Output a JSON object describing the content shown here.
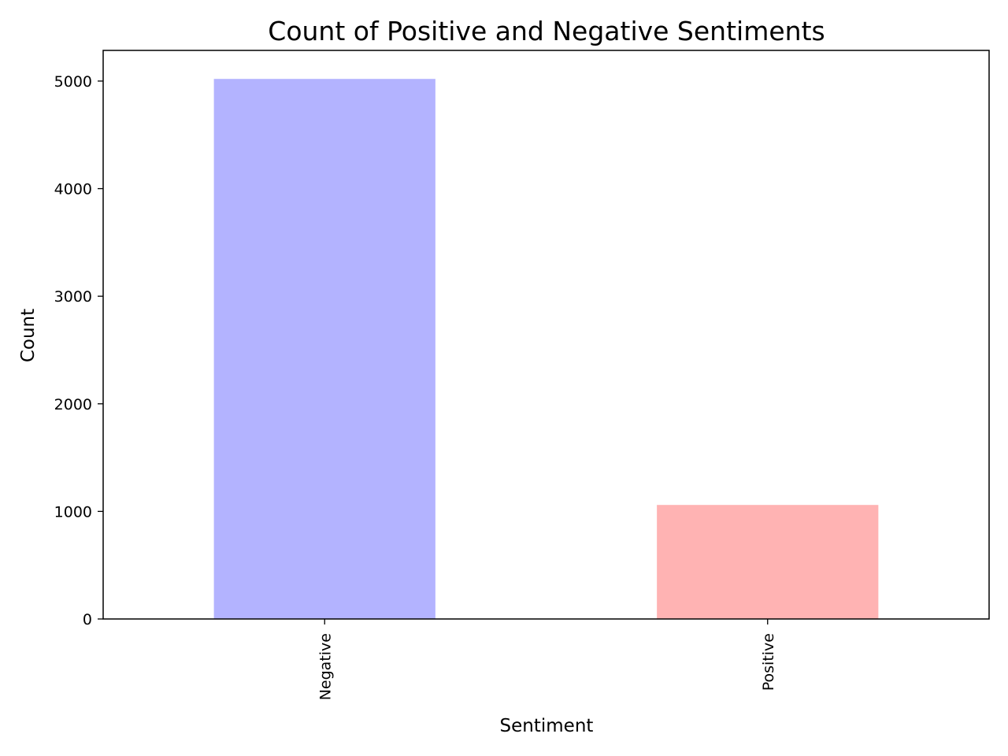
{
  "chart_data": {
    "type": "bar",
    "title": "Count of Positive and Negative Sentiments",
    "xlabel": "Sentiment",
    "ylabel": "Count",
    "categories": [
      "Negative",
      "Positive"
    ],
    "values": [
      5020,
      1060
    ],
    "colors": [
      "#b3b3ff",
      "#ffb3b3"
    ],
    "ylim": [
      0,
      5285
    ],
    "yticks": [
      0,
      1000,
      2000,
      3000,
      4000,
      5000
    ],
    "ytick_labels": [
      "0",
      "1000",
      "2000",
      "3000",
      "4000",
      "5000"
    ],
    "grid": false,
    "legend": "none"
  }
}
